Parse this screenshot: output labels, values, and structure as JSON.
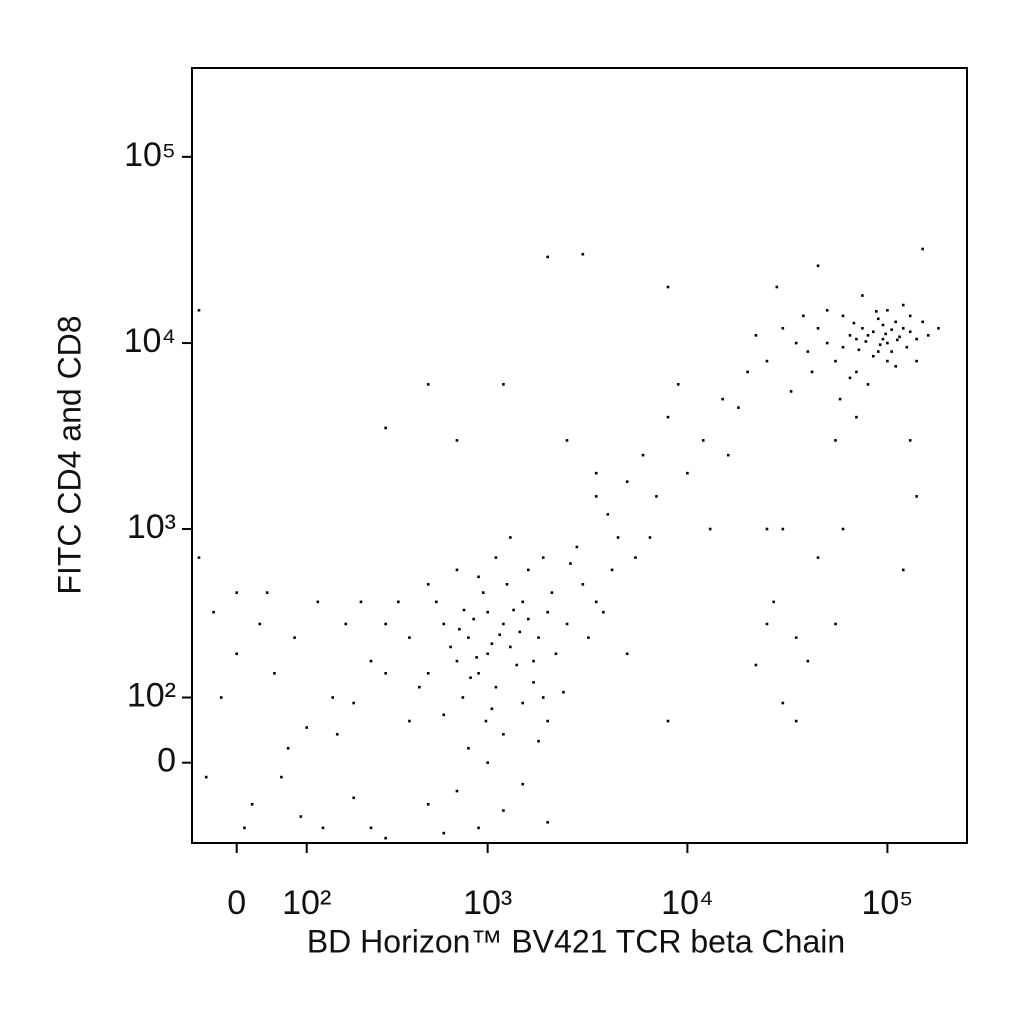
{
  "chart_data": {
    "type": "scatter",
    "xlabel": "BD Horizon™ BV421 TCR beta Chain",
    "ylabel": "FITC CD4 and CD8",
    "xscale": "biexponential",
    "yscale": "biexponential",
    "xlim": [
      -60,
      250000
    ],
    "ylim": [
      -130,
      300000
    ],
    "xticks": [
      0,
      {
        "value": 100,
        "label": "10²"
      },
      {
        "value": 1000,
        "label": "10³"
      },
      {
        "value": 10000,
        "label": "10⁴"
      },
      {
        "value": 100000,
        "label": "10⁵"
      }
    ],
    "yticks": [
      0,
      {
        "value": 100,
        "label": "10²"
      },
      {
        "value": 1000,
        "label": "10³"
      },
      {
        "value": 10000,
        "label": "10⁴"
      },
      {
        "value": 100000,
        "label": "10⁵"
      }
    ],
    "color": "#000000",
    "x": [
      80000,
      100000,
      120000,
      90000,
      70000,
      110000,
      60000,
      130000,
      95000,
      85000,
      75000,
      105000,
      140000,
      65000,
      55000,
      50000,
      115000,
      90000,
      100000,
      125000,
      45000,
      40000,
      70000,
      80000,
      60000,
      150000,
      160000,
      35000,
      30000,
      110000,
      85000,
      95000,
      72000,
      88000,
      65000,
      130000,
      50000,
      58000,
      100000,
      120000,
      42000,
      75000,
      140000,
      38000,
      105000,
      92000,
      78000,
      68000,
      98000,
      112000,
      70000,
      55000,
      130000,
      45000,
      150000,
      28000,
      180000,
      25000,
      22000,
      33000,
      20000,
      15000,
      12000,
      8000,
      10000,
      6000,
      5000,
      4000,
      7000,
      9000,
      3500,
      18000,
      13000,
      6500,
      8000,
      3000,
      2000,
      500,
      700,
      1200,
      300,
      2500,
      5500,
      4500,
      3500,
      16000,
      25000,
      30000,
      27000,
      35000,
      40000,
      22000,
      45000,
      55000,
      120000,
      30000,
      35000,
      8000,
      25000,
      60000,
      140000,
      1000,
      800,
      1200,
      900,
      1500,
      700,
      1100,
      1300,
      600,
      2000,
      500,
      1800,
      950,
      750,
      1400,
      1600,
      850,
      1050,
      650,
      1250,
      2200,
      400,
      450,
      550,
      1700,
      2500,
      3000,
      2800,
      1900,
      1000,
      1150,
      880,
      720,
      1350,
      980,
      1200,
      800,
      600,
      1500,
      2000,
      2400,
      3200,
      3500,
      1100,
      1300,
      900,
      700,
      500,
      350,
      300,
      400,
      1800,
      1000,
      700,
      500,
      1500,
      2000,
      900,
      1200,
      600,
      1700,
      1450,
      1050,
      820,
      760,
      1600,
      2100,
      2600,
      3800,
      4200,
      5000,
      1900,
      300,
      250,
      200,
      30,
      0,
      -20,
      50,
      80,
      100,
      60,
      20,
      120,
      150,
      40,
      -30,
      10,
      90,
      70,
      180,
      200,
      130,
      -40,
      160,
      0,
      -50,
      -50,
      300,
      250,
      220
    ],
    "values": [
      11000,
      10000,
      12000,
      9000,
      10500,
      13000,
      9500,
      11500,
      12500,
      8500,
      12000,
      9000,
      10500,
      11000,
      8000,
      10000,
      10800,
      13500,
      15000,
      9500,
      12000,
      9000,
      7000,
      6000,
      14000,
      13000,
      11000,
      10000,
      12000,
      7500,
      11500,
      10500,
      9200,
      14800,
      6500,
      14000,
      15000,
      5000,
      8000,
      16000,
      7000,
      18000,
      8000,
      14000,
      11800,
      9800,
      10200,
      12800,
      11200,
      10400,
      4000,
      3000,
      3000,
      26000,
      32000,
      20000,
      12000,
      8000,
      11000,
      5500,
      7000,
      5000,
      3000,
      4000,
      2000,
      2500,
      1800,
      1200,
      1500,
      6000,
      2000,
      4500,
      1000,
      900,
      20000,
      30000,
      29000,
      6000,
      3000,
      6000,
      3500,
      3000,
      700,
      900,
      1500,
      2500,
      1000,
      1000,
      400,
      250,
      180,
      170,
      700,
      300,
      600,
      90,
      60,
      60,
      300,
      1000,
      1500,
      200,
      250,
      300,
      150,
      400,
      180,
      120,
      220,
      300,
      350,
      150,
      250,
      450,
      100,
      170,
      600,
      320,
      80,
      220,
      500,
      200,
      250,
      120,
      400,
      130,
      300,
      500,
      800,
      700,
      350,
      260,
      190,
      280,
      360,
      60,
      40,
      20,
      70,
      90,
      60,
      110,
      250,
      400,
      700,
      900,
      550,
      600,
      500,
      400,
      150,
      60,
      30,
      0,
      -40,
      -60,
      -30,
      -90,
      -100,
      -70,
      -110,
      180,
      270,
      230,
      140,
      360,
      320,
      450,
      650,
      350,
      600,
      200,
      100,
      300,
      180,
      90,
      300,
      200,
      100,
      150,
      250,
      50,
      -20,
      -60,
      400,
      100,
      450,
      350,
      -100,
      -80,
      20,
      300,
      -50,
      -100,
      -20,
      40,
      450,
      700,
      15000,
      -120,
      -100,
      400
    ]
  }
}
